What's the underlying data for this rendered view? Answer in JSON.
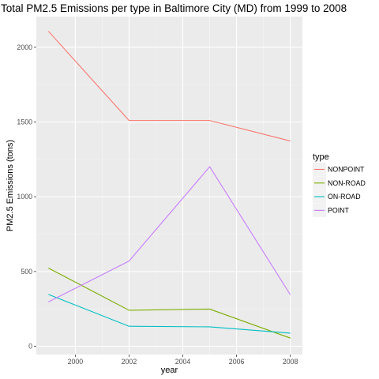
{
  "chart_data": {
    "type": "line",
    "title": "Total PM2.5 Emissions per type in Baltimore City (MD) from 1999 to 2008",
    "xlabel": "year",
    "ylabel": "PM2.5 Emissions (tons)",
    "x": [
      1999,
      2002,
      2005,
      2008
    ],
    "xticks": [
      2000,
      2002,
      2004,
      2006,
      2008
    ],
    "yticks": [
      0,
      500,
      1000,
      1500,
      2000
    ],
    "xlim": [
      1998.55,
      2008.45
    ],
    "ylim": [
      -55,
      2205
    ],
    "grid": true,
    "legend": {
      "title": "type",
      "position": "right"
    },
    "series": [
      {
        "name": "NONPOINT",
        "color": "#F8766D",
        "values": [
          2107,
          1510,
          1510,
          1373
        ]
      },
      {
        "name": "NON-ROAD",
        "color": "#7CAE00",
        "values": [
          523,
          241,
          249,
          55
        ]
      },
      {
        "name": "ON-ROAD",
        "color": "#00BFC4",
        "values": [
          347,
          134,
          130,
          88
        ]
      },
      {
        "name": "POINT",
        "color": "#C77CFF",
        "values": [
          297,
          570,
          1201,
          345
        ]
      }
    ]
  }
}
